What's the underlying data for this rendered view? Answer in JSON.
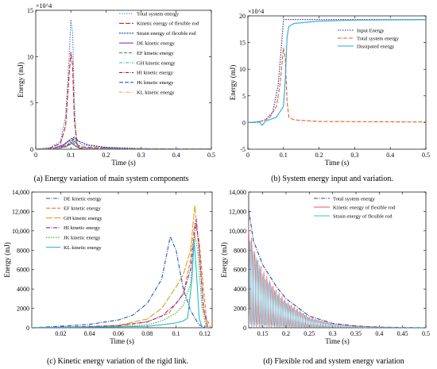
{
  "captions": {
    "a": "(a) Energy variation of main system components",
    "b": "(b) System energy input and variation.",
    "c": "(c)  Kinetic energy variation of the rigid link.",
    "d": "(d)  Flexible rod and system energy variation"
  },
  "chart_data": [
    {
      "id": "a",
      "type": "line",
      "xlabel": "Time (s)",
      "ylabel": "Energy (mJ)",
      "xlim": [
        0,
        0.5
      ],
      "ylim": [
        0,
        15
      ],
      "y_multiplier": "×10^4",
      "xticks": [
        "0",
        "0.1",
        "0.2",
        "0.3",
        "0.4",
        "0.5"
      ],
      "yticks": [
        "0",
        "5",
        "10",
        "15"
      ],
      "legend": "top-right",
      "series": [
        {
          "name": "Total system energy",
          "color": "#3f7fd6",
          "dash": "1.5,1.5",
          "x": [
            0,
            0.04,
            0.07,
            0.085,
            0.095,
            0.1,
            0.105,
            0.11,
            0.115,
            0.13,
            0.2,
            0.3,
            0.4,
            0.5
          ],
          "y": [
            0,
            0.15,
            0.8,
            3.5,
            10,
            14,
            12.5,
            5,
            1.2,
            0.5,
            0.15,
            0.05,
            0.02,
            0.01
          ]
        },
        {
          "name": "Kinetic energy of flexible rod",
          "color": "#cc2222",
          "dash": "6,2",
          "x": [
            0,
            0.04,
            0.07,
            0.085,
            0.095,
            0.1,
            0.105,
            0.11,
            0.118,
            0.13,
            0.2,
            0.3,
            0.5
          ],
          "y": [
            0,
            0.1,
            0.6,
            2.5,
            8,
            10.5,
            9,
            3,
            0.5,
            0.25,
            0.08,
            0.03,
            0.01
          ]
        },
        {
          "name": "Strain energy of flexible rod",
          "color": "#22309a",
          "dash": "2,1.2",
          "x": [
            0,
            0.05,
            0.08,
            0.1,
            0.11,
            0.12,
            0.15,
            0.2,
            0.3,
            0.5
          ],
          "y": [
            0,
            0.1,
            0.4,
            1.1,
            1.3,
            0.9,
            0.45,
            0.2,
            0.06,
            0.01
          ]
        },
        {
          "name": "DE kinetic energy",
          "color": "#7744bb",
          "dash": "",
          "x": [
            0,
            0.05,
            0.08,
            0.095,
            0.105,
            0.115,
            0.125,
            0.15,
            0.2,
            0.5
          ],
          "y": [
            0,
            0.08,
            0.5,
            0.95,
            0.55,
            0.3,
            0.1,
            0.04,
            0.02,
            0.01
          ]
        },
        {
          "name": "EF kinetic energy",
          "color": "#33aa33",
          "dash": "4,2",
          "x": [
            0,
            0.06,
            0.09,
            0.105,
            0.115,
            0.125,
            0.2,
            0.5
          ],
          "y": [
            0,
            0.06,
            0.35,
            0.7,
            0.5,
            0.1,
            0.02,
            0.01
          ]
        },
        {
          "name": "GH kinetic energy",
          "color": "#22b5c8",
          "dash": "4,1.5,1,1.5",
          "x": [
            0,
            0.06,
            0.09,
            0.108,
            0.116,
            0.125,
            0.2,
            0.5
          ],
          "y": [
            0,
            0.05,
            0.45,
            1.2,
            0.8,
            0.1,
            0.02,
            0.01
          ]
        },
        {
          "name": "HI kinetic energy",
          "color": "#aa1144",
          "dash": "4,1.5,1,1.5",
          "x": [
            0,
            0.06,
            0.09,
            0.108,
            0.115,
            0.125,
            0.2,
            0.5
          ],
          "y": [
            0,
            0.05,
            0.4,
            1.05,
            0.7,
            0.1,
            0.02,
            0.01
          ]
        },
        {
          "name": "JK kinetic energy",
          "color": "#2255dd",
          "dash": "5,2",
          "x": [
            0,
            0.06,
            0.09,
            0.11,
            0.117,
            0.125,
            0.2,
            0.5
          ],
          "y": [
            0,
            0.04,
            0.3,
            0.85,
            0.6,
            0.1,
            0.02,
            0.01
          ]
        },
        {
          "name": "KL kinetic energy",
          "color": "#e89a3a",
          "dash": "3,1.5,1,1.5,1,1.5",
          "x": [
            0,
            0.06,
            0.09,
            0.11,
            0.116,
            0.125,
            0.2,
            0.5
          ],
          "y": [
            0,
            0.04,
            0.3,
            0.9,
            0.6,
            0.1,
            0.02,
            0.01
          ]
        }
      ]
    },
    {
      "id": "b",
      "type": "line",
      "xlabel": "Time (s)",
      "ylabel": "Energy (mJ)",
      "xlim": [
        0,
        0.5
      ],
      "ylim": [
        -5,
        20
      ],
      "y_multiplier": "×10^4",
      "xticks": [
        "0",
        "0.1",
        "0.2",
        "0.3",
        "0.4",
        "0.5"
      ],
      "yticks": [
        "-5",
        "0",
        "5",
        "10",
        "15",
        "20"
      ],
      "legend": "top-right",
      "series": [
        {
          "name": "Input Energy",
          "color": "#2222aa",
          "dash": "1.5,1.5",
          "x": [
            0,
            0.03,
            0.05,
            0.07,
            0.085,
            0.095,
            0.1,
            0.5
          ],
          "y": [
            0,
            0.1,
            0.5,
            2,
            7,
            15,
            19.3,
            19.3
          ]
        },
        {
          "name": "Total system energy",
          "color": "#e0602a",
          "dash": "5,2",
          "x": [
            0,
            0.03,
            0.06,
            0.08,
            0.09,
            0.1,
            0.105,
            0.11,
            0.115,
            0.13,
            0.2,
            0.5
          ],
          "y": [
            0,
            0.1,
            0.8,
            3,
            7,
            14,
            12,
            4,
            1,
            0.5,
            0.2,
            0.1
          ]
        },
        {
          "name": "Dissipated energy",
          "color": "#2aa8d8",
          "dash": "",
          "x": [
            0,
            0.02,
            0.03,
            0.04,
            0.05,
            0.06,
            0.08,
            0.1,
            0.105,
            0.11,
            0.115,
            0.13,
            0.2,
            0.3,
            0.5
          ],
          "y": [
            0,
            0,
            0.2,
            -0.5,
            0.3,
            0.5,
            1,
            3,
            8,
            16,
            18,
            18.6,
            19,
            19.2,
            19.3
          ]
        }
      ]
    },
    {
      "id": "c",
      "type": "line",
      "xlabel": "Time (s)",
      "ylabel": "Energy (mJ)",
      "xlim": [
        0,
        0.125
      ],
      "ylim": [
        0,
        14000
      ],
      "xticks": [
        "0.02",
        "0.04",
        "0.06",
        "0.08",
        "0.1",
        "0.12"
      ],
      "yticks": [
        "0",
        "2000",
        "4000",
        "6000",
        "8000",
        "10,000",
        "12,000",
        "14,000"
      ],
      "legend": "top-left",
      "series": [
        {
          "name": "DE kinetic energy",
          "color": "#2255bb",
          "dash": "5,1.5,1,1.5",
          "x": [
            0,
            0.02,
            0.04,
            0.06,
            0.07,
            0.08,
            0.09,
            0.096,
            0.1,
            0.105,
            0.11,
            0.113,
            0.116,
            0.12
          ],
          "y": [
            0,
            150,
            350,
            800,
            1300,
            2500,
            5000,
            9400,
            8000,
            4000,
            1800,
            1000,
            300,
            0
          ]
        },
        {
          "name": "EF kinetic energy",
          "color": "#ee7733",
          "dash": "5,2",
          "x": [
            0,
            0.04,
            0.06,
            0.08,
            0.095,
            0.105,
            0.11,
            0.113,
            0.116,
            0.119,
            0.121,
            0.124
          ],
          "y": [
            0,
            100,
            250,
            600,
            1500,
            3500,
            7000,
            10800,
            9000,
            4000,
            1000,
            0
          ]
        },
        {
          "name": "GH kinetic energy",
          "color": "#e0a020",
          "dash": "8,2",
          "x": [
            0,
            0.04,
            0.06,
            0.08,
            0.09,
            0.1,
            0.105,
            0.11,
            0.113,
            0.116,
            0.119,
            0.122
          ],
          "y": [
            0,
            100,
            250,
            900,
            2000,
            4200,
            5500,
            8000,
            12600,
            8000,
            2000,
            0
          ]
        },
        {
          "name": "HI kinetic energy",
          "color": "#8822aa",
          "dash": "5,1.5,1,1.5",
          "x": [
            0,
            0.06,
            0.08,
            0.09,
            0.1,
            0.105,
            0.11,
            0.114,
            0.116,
            0.119,
            0.122
          ],
          "y": [
            0,
            200,
            600,
            1200,
            2500,
            3500,
            6000,
            11200,
            8000,
            2000,
            0
          ]
        },
        {
          "name": "JK kinetic energy",
          "color": "#44aa22",
          "dash": "1.5,1.5",
          "x": [
            0,
            0.06,
            0.08,
            0.09,
            0.1,
            0.105,
            0.11,
            0.113,
            0.115,
            0.118,
            0.121
          ],
          "y": [
            0,
            100,
            300,
            700,
            1500,
            2300,
            4500,
            9500,
            8000,
            2000,
            0
          ]
        },
        {
          "name": "KL kinetic energy",
          "color": "#22bbcc",
          "dash": "",
          "x": [
            0,
            0.08,
            0.09,
            0.1,
            0.105,
            0.108,
            0.111,
            0.1125,
            0.114,
            0.116,
            0.118
          ],
          "y": [
            0,
            150,
            300,
            500,
            700,
            1000,
            5000,
            9000,
            6000,
            1000,
            0
          ]
        }
      ]
    },
    {
      "id": "d",
      "type": "line",
      "xlabel": "Time (s)",
      "ylabel": "Energy (mJ)",
      "xlim": [
        0.12,
        0.5
      ],
      "ylim": [
        0,
        14000
      ],
      "xticks": [
        "0.15",
        "0.2",
        "0.25",
        "0.3",
        "0.35",
        "0.4",
        "0.45",
        "0.5"
      ],
      "yticks": [
        "0",
        "2000",
        "4000",
        "6000",
        "8000",
        "10,000",
        "12,000",
        "14,000"
      ],
      "legend": "top-right",
      "series": [
        {
          "name": "Total system energy",
          "color": "#3344aa",
          "dash": "5,1.5,1,1.5",
          "x": [
            0.12,
            0.13,
            0.15,
            0.18,
            0.2,
            0.25,
            0.3,
            0.35,
            0.4,
            0.45,
            0.5
          ],
          "y": [
            12200,
            9000,
            6500,
            4200,
            3000,
            1200,
            450,
            180,
            70,
            30,
            15
          ]
        },
        {
          "name": "Kinetic energy of flexible rod",
          "color": "#ee5555",
          "dash": "",
          "x": [
            0.12,
            0.13,
            0.15,
            0.18,
            0.2,
            0.25,
            0.3,
            0.35,
            0.4,
            0.45,
            0.5
          ],
          "y": [
            11000,
            8400,
            6000,
            3900,
            2800,
            1100,
            420,
            170,
            65,
            25,
            12
          ],
          "oscillating": true
        },
        {
          "name": "Strain energy of flexible rod",
          "color": "#33bbdd",
          "dash": "",
          "x": [
            0.12,
            0.13,
            0.15,
            0.18,
            0.2,
            0.25,
            0.3,
            0.35,
            0.4,
            0.45,
            0.5
          ],
          "y": [
            10000,
            8000,
            5600,
            3600,
            2600,
            1000,
            380,
            150,
            60,
            22,
            10
          ],
          "oscillating": true
        }
      ]
    }
  ]
}
